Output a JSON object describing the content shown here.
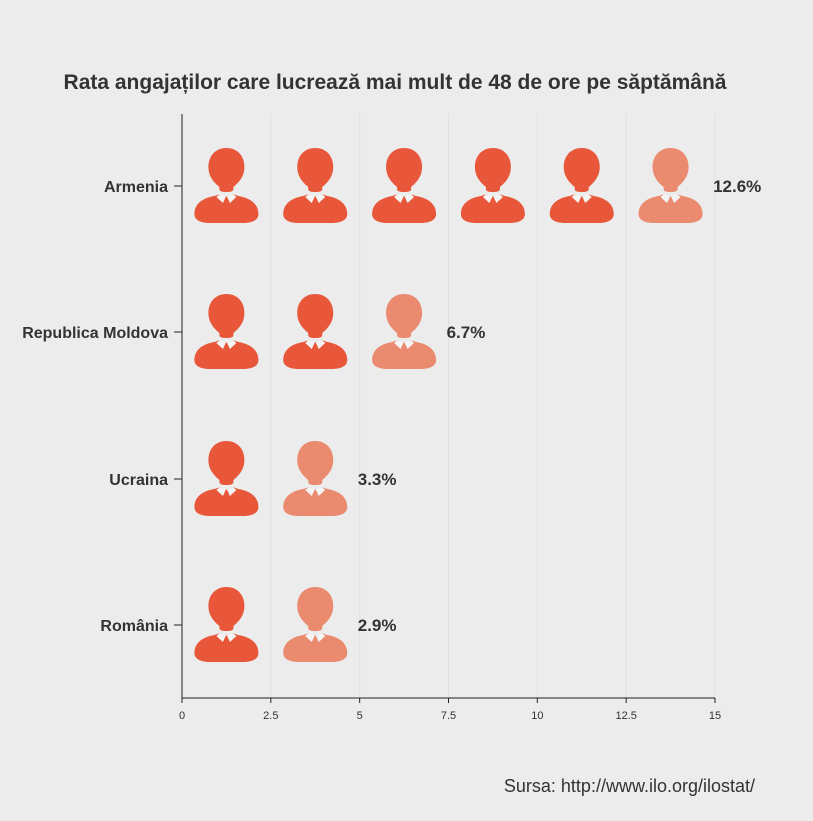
{
  "chart_data": {
    "type": "bar",
    "title": "Rata angajaților care lucrează mai mult de 48 de ore pe săptămână",
    "categories": [
      "Armenia",
      "Republica Moldova",
      "Ucraina",
      "România"
    ],
    "values": [
      12.6,
      6.7,
      3.3,
      2.9
    ],
    "value_labels": [
      "12.6%",
      "6.7%",
      "3.3%",
      "2.9%"
    ],
    "xlabel": "",
    "ylabel": "",
    "xlim": [
      0,
      15
    ],
    "x_ticks": [
      0,
      2.5,
      5,
      7.5,
      10,
      12.5,
      15
    ],
    "x_tick_labels": [
      "0",
      "2.5",
      "5",
      "7.5",
      "10",
      "12.5",
      "15"
    ],
    "units_per_icon": 2.5,
    "marker": "person-icon",
    "grid": true,
    "source": "Sursa: http://www.ilo.org/ilostat/",
    "colors": {
      "background": "#ececec",
      "icon_filled": "#e8573a",
      "icon_light": "#ea8a6f",
      "collar": "#f4f4f4",
      "grid": "#e0e0e0",
      "axis": "#222222",
      "text": "#333333"
    }
  }
}
